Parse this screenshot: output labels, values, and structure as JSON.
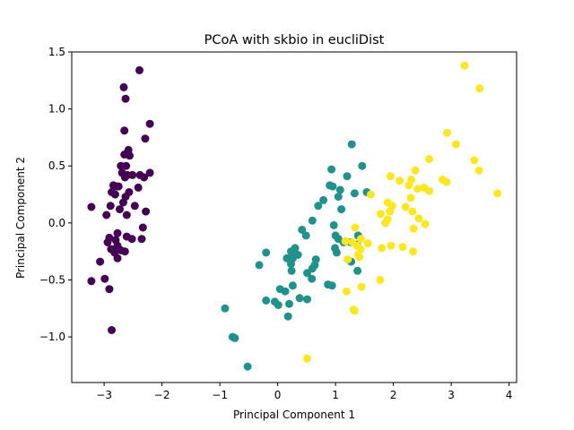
{
  "chart_data": {
    "type": "scatter",
    "title": "PCoA with skbio in eucliDist",
    "xlabel": "Principal Component 1",
    "ylabel": "Principal Component 2",
    "xlim": [
      -3.56,
      4.13
    ],
    "ylim": [
      -1.4,
      1.5
    ],
    "xticks": [
      -3,
      -2,
      -1,
      0,
      1,
      2,
      3,
      4
    ],
    "yticks": [
      -1.0,
      -0.5,
      0.0,
      0.5,
      1.0,
      1.5
    ],
    "xtick_labels": [
      "−3",
      "−2",
      "−1",
      "0",
      "1",
      "2",
      "3",
      "4"
    ],
    "ytick_labels": [
      "−1.0",
      "−0.5",
      "0.0",
      "0.5",
      "1.0",
      "1.5"
    ],
    "grid": false,
    "legend": "none",
    "colors": [
      "#440154",
      "#21918c",
      "#fde725"
    ],
    "series": [
      {
        "points": [
          [
            -2.39,
            1.34
          ],
          [
            -2.66,
            1.19
          ],
          [
            -2.63,
            1.09
          ],
          [
            -2.21,
            0.87
          ],
          [
            -2.65,
            0.81
          ],
          [
            -2.29,
            0.74
          ],
          [
            -2.58,
            0.64
          ],
          [
            -2.65,
            0.6
          ],
          [
            -2.56,
            0.59
          ],
          [
            -2.62,
            0.5
          ],
          [
            -2.71,
            0.5
          ],
          [
            -2.69,
            0.44
          ],
          [
            -2.21,
            0.44
          ],
          [
            -2.38,
            0.42
          ],
          [
            -2.6,
            0.42
          ],
          [
            -2.51,
            0.42
          ],
          [
            -2.31,
            0.4
          ],
          [
            -2.64,
            0.4
          ],
          [
            -2.84,
            0.33
          ],
          [
            -2.78,
            0.32
          ],
          [
            -2.87,
            0.27
          ],
          [
            -2.41,
            0.31
          ],
          [
            -2.75,
            0.32
          ],
          [
            -2.57,
            0.27
          ],
          [
            -2.81,
            0.25
          ],
          [
            -2.63,
            0.23
          ],
          [
            -2.67,
            0.18
          ],
          [
            -2.89,
            0.15
          ],
          [
            -2.47,
            0.15
          ],
          [
            -2.28,
            0.1
          ],
          [
            -2.73,
            0.12
          ],
          [
            -3.22,
            0.14
          ],
          [
            -2.96,
            0.07
          ],
          [
            -2.61,
            0.07
          ],
          [
            -2.33,
            -0.04
          ],
          [
            -2.77,
            -0.09
          ],
          [
            -2.61,
            -0.12
          ],
          [
            -2.91,
            -0.13
          ],
          [
            -2.52,
            -0.14
          ],
          [
            -2.35,
            -0.14
          ],
          [
            -2.8,
            -0.15
          ],
          [
            -2.94,
            -0.17
          ],
          [
            -2.77,
            -0.2
          ],
          [
            -2.71,
            -0.24
          ],
          [
            -2.88,
            -0.23
          ],
          [
            -2.82,
            -0.26
          ],
          [
            -2.64,
            -0.25
          ],
          [
            -2.77,
            -0.31
          ],
          [
            -3.07,
            -0.34
          ],
          [
            -2.99,
            -0.49
          ],
          [
            -3.22,
            -0.51
          ],
          [
            -2.91,
            -0.58
          ],
          [
            -2.87,
            -0.94
          ]
        ]
      },
      {
        "points": [
          [
            1.28,
            0.69
          ],
          [
            1.46,
            0.5
          ],
          [
            0.93,
            0.47
          ],
          [
            1.2,
            0.41
          ],
          [
            0.9,
            0.33
          ],
          [
            0.95,
            0.32
          ],
          [
            1.08,
            0.29
          ],
          [
            1.54,
            0.27
          ],
          [
            1.33,
            0.26
          ],
          [
            1.05,
            0.23
          ],
          [
            0.79,
            0.2
          ],
          [
            0.7,
            0.15
          ],
          [
            1.1,
            0.12
          ],
          [
            0.6,
            0.02
          ],
          [
            0.97,
            -0.02
          ],
          [
            1.0,
            -0.11
          ],
          [
            0.42,
            -0.06
          ],
          [
            0.49,
            -0.11
          ],
          [
            1.39,
            -0.11
          ],
          [
            1.05,
            -0.14
          ],
          [
            1.26,
            -0.17
          ],
          [
            1.37,
            -0.19
          ],
          [
            1.14,
            -0.17
          ],
          [
            0.99,
            -0.22
          ],
          [
            0.3,
            -0.22
          ],
          [
            0.23,
            -0.25
          ],
          [
            0.35,
            -0.28
          ],
          [
            -0.2,
            -0.26
          ],
          [
            1.02,
            -0.26
          ],
          [
            0.16,
            -0.31
          ],
          [
            0.23,
            -0.36
          ],
          [
            0.26,
            -0.31
          ],
          [
            0.66,
            -0.32
          ],
          [
            0.24,
            -0.42
          ],
          [
            1.27,
            -0.34
          ],
          [
            0.64,
            -0.37
          ],
          [
            0.6,
            -0.4
          ],
          [
            -0.32,
            -0.37
          ],
          [
            0.51,
            -0.44
          ],
          [
            1.38,
            -0.42
          ],
          [
            0.59,
            -0.49
          ],
          [
            0.87,
            -0.54
          ],
          [
            0.26,
            -0.55
          ],
          [
            0.94,
            -0.55
          ],
          [
            0.13,
            -0.6
          ],
          [
            0.04,
            -0.58
          ],
          [
            -0.2,
            -0.68
          ],
          [
            -0.05,
            -0.69
          ],
          [
            0.01,
            -0.72
          ],
          [
            0.38,
            -0.66
          ],
          [
            0.2,
            -0.71
          ],
          [
            0.51,
            -0.67
          ],
          [
            0.18,
            -0.82
          ],
          [
            -0.91,
            -0.75
          ],
          [
            -0.78,
            -1.0
          ],
          [
            -0.74,
            -1.01
          ],
          [
            -0.52,
            -1.26
          ]
        ]
      },
      {
        "points": [
          [
            3.23,
            1.38
          ],
          [
            3.49,
            1.18
          ],
          [
            2.93,
            0.79
          ],
          [
            3.08,
            0.69
          ],
          [
            2.62,
            0.56
          ],
          [
            3.4,
            0.55
          ],
          [
            3.48,
            0.46
          ],
          [
            2.38,
            0.46
          ],
          [
            1.95,
            0.41
          ],
          [
            2.31,
            0.38
          ],
          [
            2.11,
            0.37
          ],
          [
            2.85,
            0.38
          ],
          [
            2.92,
            0.36
          ],
          [
            2.27,
            0.33
          ],
          [
            2.53,
            0.31
          ],
          [
            2.42,
            0.3
          ],
          [
            2.62,
            0.28
          ],
          [
            3.8,
            0.26
          ],
          [
            1.61,
            0.25
          ],
          [
            2.3,
            0.22
          ],
          [
            1.9,
            0.18
          ],
          [
            1.98,
            0.15
          ],
          [
            2.21,
            0.14
          ],
          [
            1.94,
            0.1
          ],
          [
            2.33,
            0.1
          ],
          [
            1.78,
            0.08
          ],
          [
            2.44,
            0.04
          ],
          [
            1.9,
            0.03
          ],
          [
            1.86,
            0.0
          ],
          [
            2.55,
            -0.01
          ],
          [
            1.34,
            -0.04
          ],
          [
            2.35,
            -0.05
          ],
          [
            1.44,
            -0.14
          ],
          [
            1.17,
            -0.16
          ],
          [
            1.29,
            -0.17
          ],
          [
            1.56,
            -0.18
          ],
          [
            1.37,
            -0.2
          ],
          [
            1.43,
            -0.23
          ],
          [
            1.96,
            -0.2
          ],
          [
            1.8,
            -0.22
          ],
          [
            2.16,
            -0.21
          ],
          [
            2.34,
            -0.25
          ],
          [
            1.39,
            -0.28
          ],
          [
            1.21,
            -0.32
          ],
          [
            1.41,
            -0.3
          ],
          [
            1.77,
            -0.5
          ],
          [
            1.45,
            -0.56
          ],
          [
            1.19,
            -0.6
          ],
          [
            1.31,
            -0.76
          ],
          [
            1.33,
            -0.77
          ],
          [
            0.51,
            -1.19
          ]
        ]
      }
    ]
  }
}
